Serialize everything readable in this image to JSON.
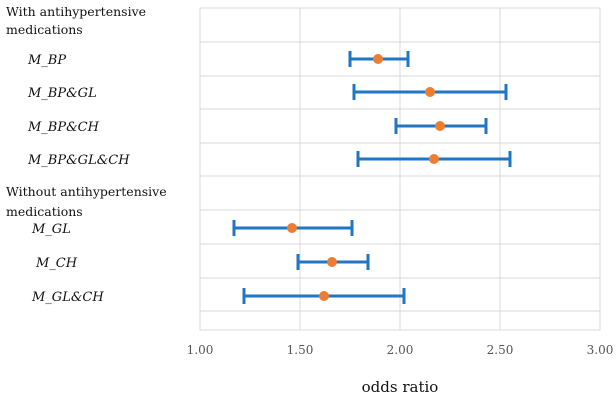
{
  "chart_data": {
    "type": "forest",
    "xlabel": "odds ratio",
    "xlim": [
      1.0,
      3.0
    ],
    "xticks": [
      "1.00",
      "1.50",
      "2.00",
      "2.50",
      "3.00"
    ],
    "grid": true,
    "groups": [
      {
        "label_line1": "With antihypertensive",
        "label_line2": "medications",
        "rows": [
          {
            "label": "M_BP",
            "or": 1.89,
            "lower": 1.75,
            "upper": 2.04
          },
          {
            "label": "M_BP&GL",
            "or": 2.15,
            "lower": 1.77,
            "upper": 2.53
          },
          {
            "label": "M_BP&CH",
            "or": 2.2,
            "lower": 1.98,
            "upper": 2.43
          },
          {
            "label": "M_BP&GL&CH",
            "or": 2.17,
            "lower": 1.79,
            "upper": 2.55
          }
        ]
      },
      {
        "label_line1": "Without antihypertensive",
        "label_line2": "medications",
        "rows": [
          {
            "label": "M_GL",
            "or": 1.46,
            "lower": 1.17,
            "upper": 1.76
          },
          {
            "label": "M_CH",
            "or": 1.66,
            "lower": 1.49,
            "upper": 1.84
          },
          {
            "label": "M_GL&CH",
            "or": 1.62,
            "lower": 1.22,
            "upper": 2.02
          }
        ]
      }
    ],
    "colors": {
      "ci": "#1f77c4",
      "point": "#ed7d31",
      "grid": "#d9d9d9"
    }
  }
}
